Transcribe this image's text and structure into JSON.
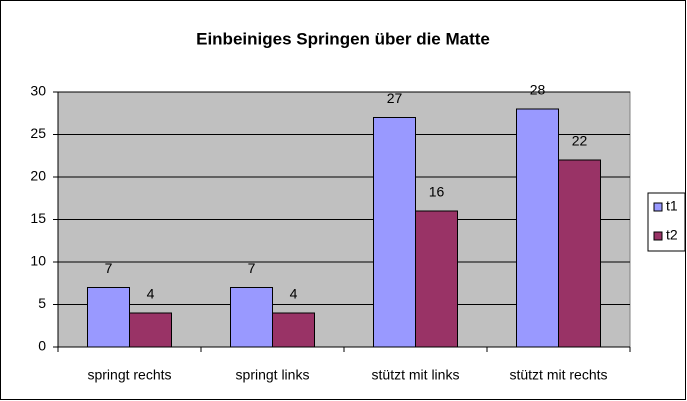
{
  "chart_data": {
    "type": "bar",
    "title": "Einbeiniges Springen über die Matte",
    "categories": [
      "springt rechts",
      "springt links",
      "stützt mit links",
      "stützt mit rechts"
    ],
    "series": [
      {
        "name": "t1",
        "color": "#9999ff",
        "values": [
          7,
          7,
          27,
          28
        ]
      },
      {
        "name": "t2",
        "color": "#993366",
        "values": [
          4,
          4,
          16,
          22
        ]
      }
    ],
    "ylim": [
      0,
      30
    ],
    "yticks": [
      0,
      5,
      10,
      15,
      20,
      25,
      30
    ],
    "grid": true,
    "legend": "right",
    "data_labels": true
  }
}
